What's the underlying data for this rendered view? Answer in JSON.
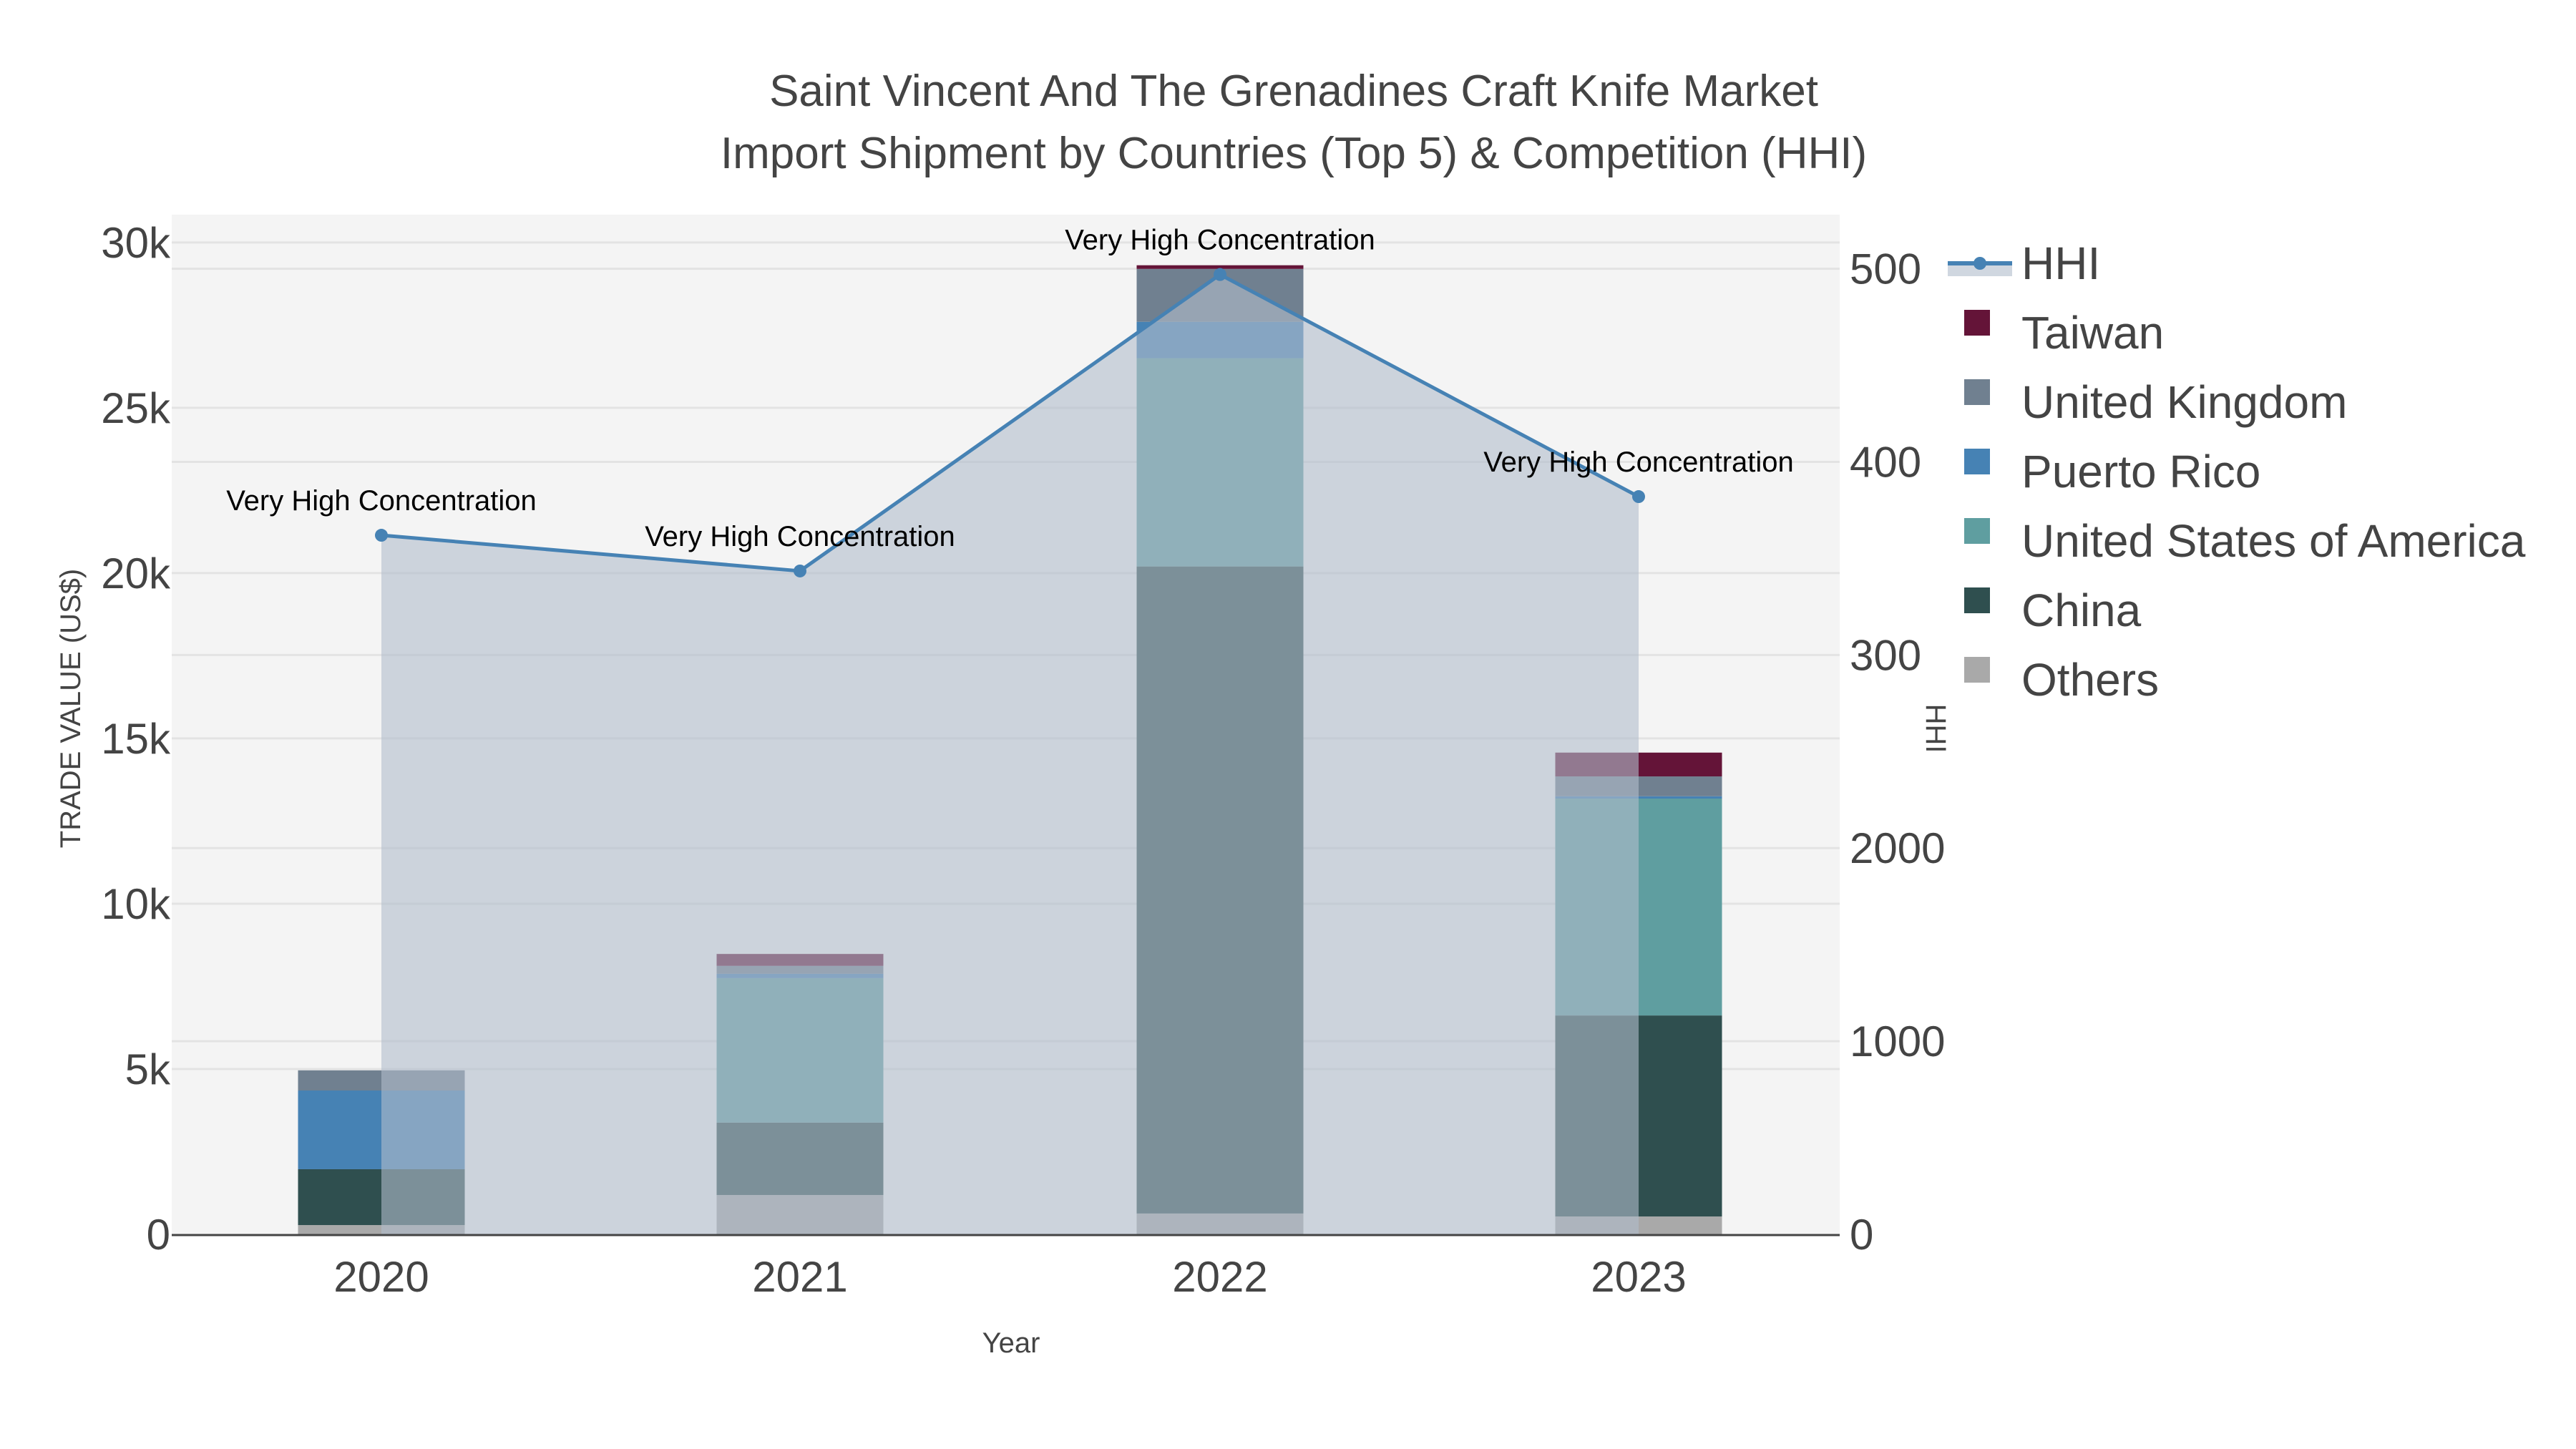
{
  "title": {
    "line1": "Saint Vincent And The Grenadines Craft Knife Market",
    "line2": "Import Shipment by Countries (Top 5) & Competition (HHI)"
  },
  "axes": {
    "x_title": "Year",
    "y_left_title": "TRADE VALUE (US$)",
    "y_right_title": "HHI",
    "y_left_ticks": [
      "0",
      "5k",
      "10k",
      "15k",
      "20k",
      "25k",
      "30k"
    ],
    "y_right_ticks": [
      "0",
      "1000",
      "2000",
      "300",
      "400",
      "500"
    ]
  },
  "legend": {
    "items": [
      {
        "label": "HHI",
        "color": "#4682b4",
        "type": "line"
      },
      {
        "label": "Taiwan",
        "color": "#641438",
        "type": "bar"
      },
      {
        "label": "United Kingdom",
        "color": "#708090",
        "type": "bar"
      },
      {
        "label": "Puerto Rico",
        "color": "#4682b4",
        "type": "bar"
      },
      {
        "label": "United States of America",
        "color": "#5f9ea0",
        "type": "bar"
      },
      {
        "label": "China",
        "color": "#2f4f4f",
        "type": "bar"
      },
      {
        "label": "Others",
        "color": "#a9a9a9",
        "type": "bar"
      }
    ]
  },
  "colors": {
    "plot_bg": "#f4f4f4",
    "grid": "#e3e3e3",
    "hhi_line": "#4682b4",
    "hhi_fill": "rgba(176,188,204,0.6)",
    "axis_line": "#444444"
  },
  "chart_data": {
    "type": "bar",
    "title": "Saint Vincent And The Grenadines Craft Knife Market Import Shipment by Countries (Top 5) & Competition (HHI)",
    "xlabel": "Year",
    "ylabel": "TRADE VALUE (US$)",
    "y2label": "HHI",
    "categories": [
      "2020",
      "2021",
      "2022",
      "2023"
    ],
    "stacked": true,
    "ylim": [
      0,
      30840
    ],
    "y2lim": [
      0,
      5280
    ],
    "grid": true,
    "legend_position": "right",
    "series": [
      {
        "name": "Others",
        "color": "#a9a9a9",
        "values": [
          280,
          1190,
          630,
          540
        ]
      },
      {
        "name": "China",
        "color": "#2f4f4f",
        "values": [
          1690,
          2190,
          19570,
          6080
        ]
      },
      {
        "name": "United States of America",
        "color": "#5f9ea0",
        "values": [
          0,
          4370,
          6300,
          6560
        ]
      },
      {
        "name": "Puerto Rico",
        "color": "#4682b4",
        "values": [
          2380,
          130,
          1100,
          70
        ]
      },
      {
        "name": "United Kingdom",
        "color": "#708090",
        "values": [
          610,
          240,
          1600,
          600
        ]
      },
      {
        "name": "Taiwan",
        "color": "#641438",
        "values": [
          0,
          360,
          110,
          720
        ]
      }
    ],
    "line_series": {
      "name": "HHI",
      "axis": "right",
      "color": "#4682b4",
      "values": [
        3620,
        3435,
        4970,
        3820
      ],
      "labels": [
        "Very High Concentration",
        "Very High Concentration",
        "Very High Concentration",
        "Very High Concentration"
      ]
    }
  }
}
